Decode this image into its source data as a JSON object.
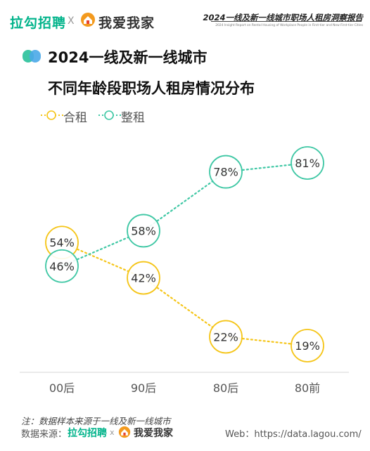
{
  "header": {
    "brand_left": "拉勾招聘",
    "separator": "X",
    "brand_right": "我爱我家",
    "report_title": "2024一线及新一线城市职场人租房洞察报告",
    "report_subtitle": "2024 Insight Report on Rental Housing of Workplace People in First-tier and New First-tier Cities"
  },
  "colors": {
    "shared_rent": "#f5c518",
    "whole_rent": "#3ec7a4",
    "brand_green": "#00b38a"
  },
  "chart_data": {
    "type": "line",
    "title": "2024一线及新一线城市\n不同年龄段职场人租房情况分布",
    "categories": [
      "00后",
      "90后",
      "80后",
      "80前"
    ],
    "series": [
      {
        "name": "合租",
        "values": [
          54,
          42,
          22,
          19
        ],
        "labels": [
          "54%",
          "42%",
          "22%",
          "19%"
        ]
      },
      {
        "name": "整租",
        "values": [
          46,
          58,
          78,
          81
        ],
        "labels": [
          "46%",
          "58%",
          "78%",
          "81%"
        ]
      }
    ],
    "ylim": [
      10,
      90
    ],
    "legend_position": "top-left",
    "grid": false
  },
  "footer": {
    "note": "注：数据样本来源于一线及新一线城市",
    "source_label": "数据来源：",
    "source_brand_left": "拉勾招聘",
    "source_separator": "x",
    "source_brand_right": "我爱我家",
    "web": "Web：https://data.lagou.com/"
  }
}
